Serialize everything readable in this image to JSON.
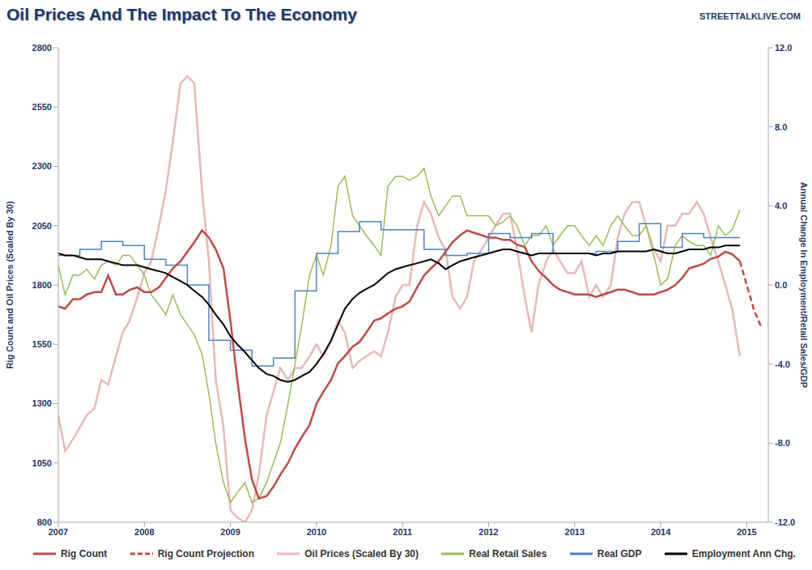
{
  "chart_data": {
    "type": "line",
    "title": "Oil Prices And The Impact To The Economy",
    "source": "STREETTALKLIVE.COM",
    "y_label": "Rig Count and Oil Prices (Scaled By 30)",
    "y2_label": "Annual Change In Employment/Retail Sales/GDP",
    "legend": "bottom",
    "grid": false,
    "x": [
      2007,
      2007.08,
      2007.17,
      2007.25,
      2007.33,
      2007.42,
      2007.5,
      2007.58,
      2007.67,
      2007.75,
      2007.83,
      2007.92,
      2008,
      2008.08,
      2008.17,
      2008.25,
      2008.33,
      2008.42,
      2008.5,
      2008.58,
      2008.67,
      2008.75,
      2008.83,
      2008.92,
      2009,
      2009.08,
      2009.17,
      2009.25,
      2009.33,
      2009.42,
      2009.5,
      2009.58,
      2009.67,
      2009.75,
      2009.83,
      2009.92,
      2010,
      2010.08,
      2010.17,
      2010.25,
      2010.33,
      2010.42,
      2010.5,
      2010.58,
      2010.67,
      2010.75,
      2010.83,
      2010.92,
      2011,
      2011.08,
      2011.17,
      2011.25,
      2011.33,
      2011.42,
      2011.5,
      2011.58,
      2011.67,
      2011.75,
      2011.83,
      2011.92,
      2012,
      2012.08,
      2012.17,
      2012.25,
      2012.33,
      2012.42,
      2012.5,
      2012.58,
      2012.67,
      2012.75,
      2012.83,
      2012.92,
      2013,
      2013.08,
      2013.17,
      2013.25,
      2013.33,
      2013.42,
      2013.5,
      2013.58,
      2013.67,
      2013.75,
      2013.83,
      2013.92,
      2014,
      2014.08,
      2014.17,
      2014.25,
      2014.33,
      2014.42,
      2014.5,
      2014.58,
      2014.67,
      2014.75,
      2014.83,
      2014.92,
      2015,
      2015.08,
      2015.17
    ],
    "xlim": [
      2007,
      2015.25
    ],
    "xticks": [
      2007,
      2008,
      2009,
      2010,
      2011,
      2012,
      2013,
      2014,
      2015
    ],
    "ylim": [
      800,
      2800
    ],
    "yticks": [
      800,
      1050,
      1300,
      1550,
      1800,
      2050,
      2300,
      2550,
      2800
    ],
    "y2lim": [
      -12,
      12
    ],
    "y2ticks": [
      {
        "value": -12,
        "label": "-12.0"
      },
      {
        "value": -8,
        "label": "-8.0"
      },
      {
        "value": -4,
        "label": "-4.0"
      },
      {
        "value": 0,
        "label": "0.0"
      },
      {
        "value": 4,
        "label": "4.0"
      },
      {
        "value": 8,
        "label": "8.0"
      },
      {
        "value": 12,
        "label": "12.0"
      }
    ],
    "series": [
      {
        "name": "Rig Count",
        "color": "#be4b48",
        "line_style": "solid",
        "values": [
          1710,
          1700,
          1740,
          1740,
          1760,
          1770,
          1770,
          1840,
          1760,
          1760,
          1780,
          1790,
          1770,
          1770,
          1790,
          1830,
          1870,
          1900,
          1940,
          1980,
          2030,
          2000,
          1950,
          1870,
          1650,
          1400,
          1150,
          980,
          900,
          910,
          950,
          1000,
          1050,
          1110,
          1160,
          1210,
          1300,
          1350,
          1400,
          1470,
          1500,
          1540,
          1560,
          1600,
          1650,
          1660,
          1680,
          1700,
          1710,
          1730,
          1790,
          1840,
          1870,
          1900,
          1940,
          1980,
          2010,
          2030,
          2020,
          2010,
          2000,
          2000,
          1990,
          1990,
          1970,
          1960,
          1900,
          1860,
          1830,
          1800,
          1780,
          1770,
          1760,
          1760,
          1760,
          1750,
          1760,
          1770,
          1780,
          1780,
          1770,
          1760,
          1760,
          1760,
          1770,
          1780,
          1800,
          1830,
          1870,
          1880,
          1890,
          1910,
          1920,
          1940,
          1930,
          1900,
          null,
          null,
          null
        ]
      },
      {
        "name": "Rig Count Projection",
        "color": "#be4b48",
        "line_style": "dashed",
        "values": [
          null,
          null,
          null,
          null,
          null,
          null,
          null,
          null,
          null,
          null,
          null,
          null,
          null,
          null,
          null,
          null,
          null,
          null,
          null,
          null,
          null,
          null,
          null,
          null,
          null,
          null,
          null,
          null,
          null,
          null,
          null,
          null,
          null,
          null,
          null,
          null,
          null,
          null,
          null,
          null,
          null,
          null,
          null,
          null,
          null,
          null,
          null,
          null,
          null,
          null,
          null,
          null,
          null,
          null,
          null,
          null,
          null,
          null,
          null,
          null,
          null,
          null,
          null,
          null,
          null,
          null,
          null,
          null,
          null,
          null,
          null,
          null,
          null,
          null,
          null,
          null,
          null,
          null,
          null,
          null,
          null,
          null,
          null,
          null,
          null,
          null,
          null,
          null,
          null,
          null,
          null,
          null,
          null,
          null,
          null,
          1900,
          1800,
          1700,
          1620
        ]
      },
      {
        "name": "Oil Prices (Scaled By 30)",
        "color": "#e6b9b8",
        "line_style": "solid",
        "values": [
          1250,
          1100,
          1150,
          1200,
          1250,
          1280,
          1400,
          1380,
          1500,
          1600,
          1650,
          1750,
          1850,
          1900,
          2050,
          2200,
          2400,
          2650,
          2680,
          2650,
          2200,
          1900,
          1400,
          1200,
          850,
          820,
          800,
          850,
          1000,
          1250,
          1350,
          1450,
          1400,
          1450,
          1450,
          1500,
          1550,
          1500,
          1560,
          1650,
          1600,
          1450,
          1480,
          1500,
          1520,
          1500,
          1600,
          1750,
          1800,
          1800,
          2050,
          2150,
          2100,
          2000,
          1950,
          1750,
          1700,
          1750,
          1900,
          1950,
          2000,
          2050,
          2100,
          2100,
          1950,
          1750,
          1600,
          1800,
          1900,
          1950,
          1900,
          1850,
          1850,
          1900,
          1750,
          1800,
          1750,
          1800,
          2000,
          2100,
          2150,
          2150,
          2050,
          1950,
          1900,
          2050,
          2050,
          2100,
          2100,
          2150,
          2100,
          2000,
          1900,
          1800,
          1700,
          1500,
          null,
          null,
          null
        ]
      },
      {
        "name": "Real Retail Sales",
        "color": "#9bbb59",
        "line_style": "solid",
        "axis": "y2",
        "values": [
          1.0,
          -0.5,
          0.5,
          0.5,
          0.8,
          0.3,
          1.0,
          1.2,
          1.0,
          1.5,
          1.5,
          1.0,
          0.5,
          -0.5,
          -1.0,
          -1.5,
          -0.5,
          -1.5,
          -2.0,
          -2.5,
          -3.5,
          -5.5,
          -8.0,
          -10.0,
          -11.0,
          -10.5,
          -10.0,
          -11.0,
          -10.8,
          -10.0,
          -9.0,
          -8.0,
          -6.0,
          -4.0,
          -2.0,
          0.5,
          1.5,
          0.5,
          2.0,
          5.0,
          5.5,
          3.5,
          3.0,
          2.5,
          2.0,
          1.5,
          5.0,
          5.5,
          5.5,
          5.3,
          5.5,
          5.9,
          4.5,
          3.5,
          4.0,
          4.5,
          4.5,
          3.5,
          3.5,
          3.5,
          3.5,
          3.0,
          3.2,
          3.5,
          3.0,
          2.0,
          2.5,
          2.5,
          3.0,
          2.0,
          2.5,
          3.0,
          3.0,
          2.5,
          2.0,
          2.5,
          2.0,
          3.0,
          3.5,
          3.0,
          2.5,
          2.5,
          3.0,
          1.5,
          0.0,
          0.3,
          2.0,
          2.5,
          2.2,
          2.0,
          2.0,
          1.5,
          3.0,
          2.5,
          2.8,
          3.8,
          null,
          null,
          null
        ]
      },
      {
        "name": "Real GDP",
        "color": "#4f81bd",
        "line_style": "step",
        "axis": "y2",
        "values": [
          1.5,
          1.5,
          1.5,
          1.8,
          1.8,
          1.8,
          2.2,
          2.2,
          2.2,
          2.0,
          2.0,
          2.0,
          1.3,
          1.3,
          1.3,
          1.0,
          1.0,
          1.0,
          0.0,
          0.0,
          0.0,
          -2.8,
          -2.8,
          -2.8,
          -3.3,
          -3.3,
          -3.3,
          -4.1,
          -4.1,
          -4.1,
          -3.7,
          -3.7,
          -3.7,
          -0.3,
          -0.3,
          -0.3,
          1.6,
          1.6,
          1.6,
          2.7,
          2.7,
          2.7,
          3.2,
          3.2,
          3.2,
          2.8,
          2.8,
          2.8,
          2.8,
          2.8,
          2.8,
          1.8,
          1.8,
          1.8,
          1.5,
          1.5,
          1.5,
          1.6,
          1.6,
          1.6,
          2.6,
          2.6,
          2.6,
          2.4,
          2.4,
          2.4,
          2.6,
          2.6,
          2.6,
          1.6,
          1.6,
          1.6,
          1.6,
          1.6,
          1.6,
          1.7,
          1.7,
          1.7,
          2.2,
          2.2,
          2.2,
          3.1,
          3.1,
          3.1,
          1.9,
          1.9,
          1.9,
          2.6,
          2.6,
          2.6,
          2.4,
          2.4,
          2.4,
          2.4,
          2.4,
          2.4,
          null,
          null,
          null
        ]
      },
      {
        "name": "Employment Ann Chg.",
        "color": "#000000",
        "line_style": "solid",
        "axis": "y2",
        "values": [
          1.6,
          1.5,
          1.5,
          1.4,
          1.3,
          1.3,
          1.3,
          1.2,
          1.1,
          1.0,
          1.0,
          1.0,
          0.9,
          0.8,
          0.7,
          0.6,
          0.4,
          0.2,
          0.0,
          -0.3,
          -0.6,
          -1.0,
          -1.5,
          -2.0,
          -2.6,
          -3.0,
          -3.4,
          -3.8,
          -4.2,
          -4.5,
          -4.6,
          -4.8,
          -4.9,
          -4.8,
          -4.6,
          -4.4,
          -4.0,
          -3.5,
          -2.8,
          -2.0,
          -1.2,
          -0.7,
          -0.4,
          -0.2,
          0.0,
          0.3,
          0.6,
          0.8,
          0.9,
          1.0,
          1.1,
          1.2,
          1.3,
          1.1,
          0.8,
          1.0,
          1.2,
          1.3,
          1.4,
          1.5,
          1.6,
          1.7,
          1.8,
          1.8,
          1.7,
          1.6,
          1.5,
          1.6,
          1.6,
          1.6,
          1.6,
          1.6,
          1.6,
          1.6,
          1.6,
          1.5,
          1.6,
          1.6,
          1.7,
          1.7,
          1.7,
          1.7,
          1.7,
          1.8,
          1.7,
          1.6,
          1.6,
          1.7,
          1.8,
          1.8,
          1.8,
          1.9,
          1.9,
          2.0,
          2.0,
          2.0,
          null,
          null,
          null
        ]
      }
    ]
  }
}
